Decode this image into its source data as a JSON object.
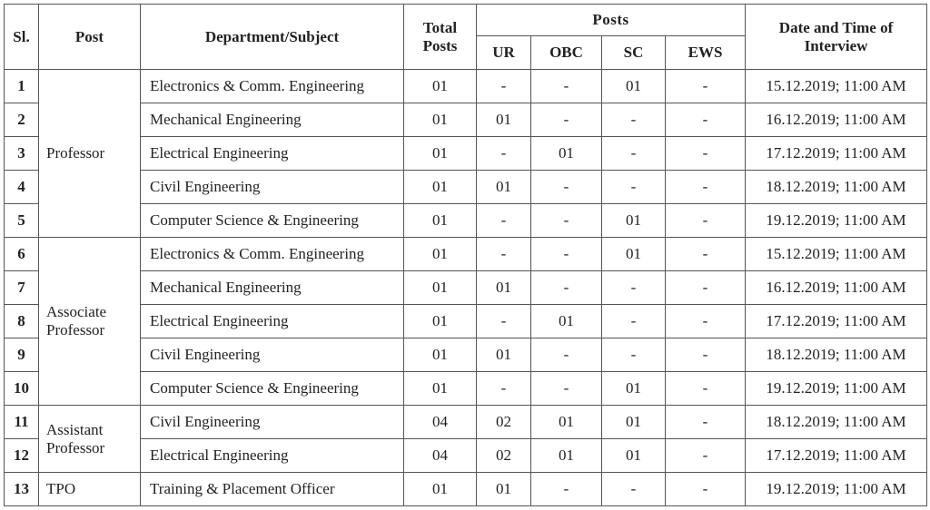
{
  "headers": {
    "sl": "Sl.",
    "post": "Post",
    "department": "Department/Subject",
    "total_line1": "Total",
    "total_line2": "Posts",
    "posts": "Posts",
    "ur": "UR",
    "obc": "OBC",
    "sc": "SC",
    "ews": "EWS",
    "date_line1": "Date and Time of",
    "date_line2": "Interview"
  },
  "groups": [
    {
      "post_line1": "Professor",
      "post_line2": "",
      "rows": [
        {
          "sl": "1",
          "dept": "Electronics & Comm. Engineering",
          "total": "01",
          "ur": "-",
          "obc": "-",
          "sc": "01",
          "ews": "-",
          "date": "15.12.2019; 11:00 AM"
        },
        {
          "sl": "2",
          "dept": "Mechanical Engineering",
          "total": "01",
          "ur": "01",
          "obc": "-",
          "sc": "-",
          "ews": "-",
          "date": "16.12.2019; 11:00 AM"
        },
        {
          "sl": "3",
          "dept": "Electrical Engineering",
          "total": "01",
          "ur": "-",
          "obc": "01",
          "sc": "-",
          "ews": "-",
          "date": "17.12.2019; 11:00 AM"
        },
        {
          "sl": "4",
          "dept": "Civil Engineering",
          "total": "01",
          "ur": "01",
          "obc": "-",
          "sc": "-",
          "ews": "-",
          "date": "18.12.2019; 11:00 AM"
        },
        {
          "sl": "5",
          "dept": "Computer Science & Engineering",
          "total": "01",
          "ur": "-",
          "obc": "-",
          "sc": "01",
          "ews": "-",
          "date": "19.12.2019; 11:00 AM"
        }
      ]
    },
    {
      "post_line1": "Associate",
      "post_line2": "Professor",
      "rows": [
        {
          "sl": "6",
          "dept": "Electronics & Comm. Engineering",
          "total": "01",
          "ur": "-",
          "obc": "-",
          "sc": "01",
          "ews": "-",
          "date": "15.12.2019; 11:00 AM"
        },
        {
          "sl": "7",
          "dept": "Mechanical Engineering",
          "total": "01",
          "ur": "01",
          "obc": "-",
          "sc": "-",
          "ews": "-",
          "date": "16.12.2019; 11:00 AM"
        },
        {
          "sl": "8",
          "dept": "Electrical Engineering",
          "total": "01",
          "ur": "-",
          "obc": "01",
          "sc": "-",
          "ews": "-",
          "date": "17.12.2019; 11:00 AM"
        },
        {
          "sl": "9",
          "dept": "Civil Engineering",
          "total": "01",
          "ur": "01",
          "obc": "-",
          "sc": "-",
          "ews": "-",
          "date": "18.12.2019; 11:00 AM"
        },
        {
          "sl": "10",
          "dept": "Computer Science & Engineering",
          "total": "01",
          "ur": "-",
          "obc": "-",
          "sc": "01",
          "ews": "-",
          "date": "19.12.2019; 11:00 AM"
        }
      ]
    },
    {
      "post_line1": "Assistant",
      "post_line2": "Professor",
      "rows": [
        {
          "sl": "11",
          "dept": "Civil Engineering",
          "total": "04",
          "ur": "02",
          "obc": "01",
          "sc": "01",
          "ews": "-",
          "date": "18.12.2019; 11:00 AM"
        },
        {
          "sl": "12",
          "dept": "Electrical Engineering",
          "total": "04",
          "ur": "02",
          "obc": "01",
          "sc": "01",
          "ews": "-",
          "date": "17.12.2019; 11:00 AM"
        }
      ]
    },
    {
      "post_line1": "TPO",
      "post_line2": "",
      "rows": [
        {
          "sl": "13",
          "dept": "Training & Placement Officer",
          "total": "01",
          "ur": "01",
          "obc": "-",
          "sc": "-",
          "ews": "-",
          "date": "19.12.2019; 11:00 AM"
        }
      ]
    }
  ]
}
